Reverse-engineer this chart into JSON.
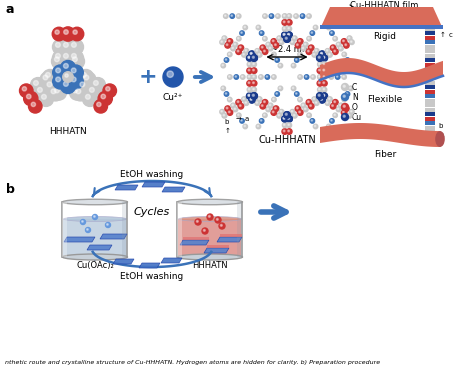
{
  "panel_a_label": "a",
  "panel_b_label": "b",
  "hhhatn_label": "HHHATN",
  "cu2plus_label": "Cu²⁺",
  "cu_hhhatn_label": "Cu-HHHATN",
  "nm_label": "~2.4 nm",
  "legend_C": "C",
  "legend_N": "N",
  "legend_O": "O",
  "legend_Cu": "Cu",
  "etoh_washing_top": "EtOH washing",
  "etoh_washing_bot": "EtOH washing",
  "cycles_label": "Cycles",
  "cu_oac_label": "Cu(OAc)₂",
  "hhhatn_b_label": "HHHATN",
  "cu_hhhatn_film_label": "Cu-HHHATN film",
  "rigid_label": "Rigid",
  "flexible_label": "Flexible",
  "fiber_label": "Fiber",
  "arrow_color": "#3A72B8",
  "atom_C": "#C8C8C8",
  "atom_N": "#3A72B8",
  "atom_O": "#CC3333",
  "atom_Cu": "#1A3B8C",
  "film_color": "#D96B5A",
  "film_edge": "#4472C4",
  "bg_color": "#FFFFFF",
  "caption": "nthetic route and crystalline structure of Cu-HHHATN. Hydrogen atoms are hidden for clarity. b) Preparation procedure"
}
